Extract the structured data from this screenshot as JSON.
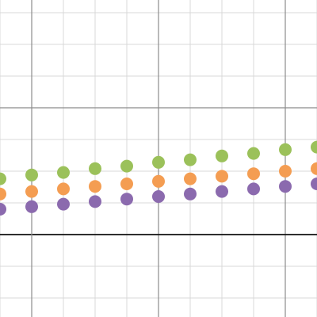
{
  "graph": {
    "background": "#ffffff",
    "minor_grid_color": "#d8d8d8",
    "major_grid_color": "#8c8c8c",
    "axis_color": "#111111"
  },
  "chart_data": {
    "type": "scatter",
    "title": "",
    "xlabel": "",
    "ylabel": "",
    "xlim": [
      -0.25,
      2.25
    ],
    "ylim": [
      -0.65,
      1.85
    ],
    "grid": true,
    "minor_grid_step": 0.25,
    "major_grid_step": 1,
    "x_axis_at_y": 0,
    "series": [
      {
        "color": "#9bc15a",
        "x": [
          -0.25,
          0,
          0.25,
          0.5,
          0.75,
          1,
          1.25,
          1.5,
          1.75,
          2,
          2.25
        ],
        "y": [
          0.44,
          0.47,
          0.49,
          0.52,
          0.54,
          0.57,
          0.59,
          0.62,
          0.64,
          0.67,
          0.69
        ]
      },
      {
        "color": "#f49d52",
        "x": [
          -0.25,
          0,
          0.25,
          0.5,
          0.75,
          1,
          1.25,
          1.5,
          1.75,
          2,
          2.25
        ],
        "y": [
          0.32,
          0.34,
          0.36,
          0.38,
          0.4,
          0.42,
          0.44,
          0.46,
          0.48,
          0.5,
          0.52
        ]
      },
      {
        "color": "#8b6aae",
        "x": [
          -0.25,
          0,
          0.25,
          0.5,
          0.75,
          1,
          1.25,
          1.5,
          1.75,
          2,
          2.25
        ],
        "y": [
          0.2,
          0.22,
          0.24,
          0.26,
          0.28,
          0.3,
          0.32,
          0.34,
          0.36,
          0.38,
          0.4
        ]
      }
    ]
  }
}
